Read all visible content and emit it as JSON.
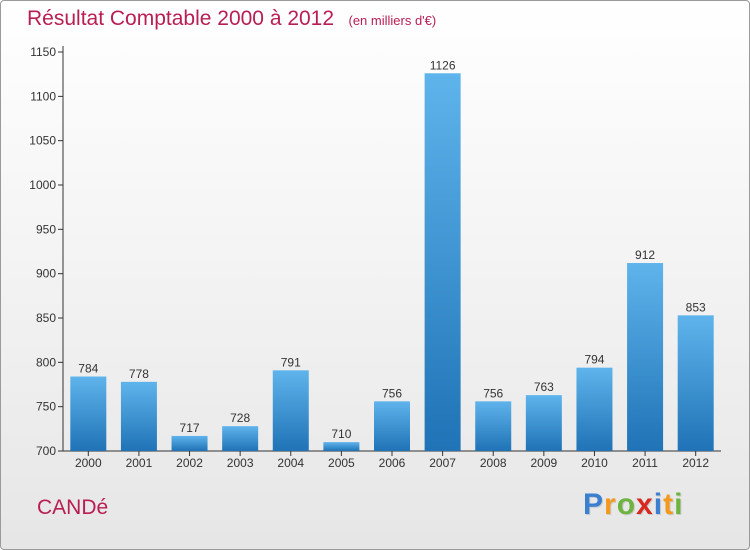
{
  "title": "Résultat Comptable 2000 à 2012",
  "unit": "(en milliers d'€)",
  "city": "CANDé",
  "brand": {
    "letters": [
      "P",
      "r",
      "o",
      "x",
      "i",
      "t",
      "i"
    ],
    "colors": [
      "#3a7fd0",
      "#f39a1e",
      "#6cb33f",
      "#d8281f",
      "#3a7fd0",
      "#f39a1e",
      "#6cb33f"
    ]
  },
  "colors": {
    "title": "#b81e54",
    "bar_light": "#5fb4ec",
    "bar_dark": "#1f73b6",
    "axis": "#333333"
  },
  "chart_data": {
    "type": "bar",
    "title": "Résultat Comptable 2000 à 2012",
    "ylabel": "(en milliers d'€)",
    "xlabel": "",
    "categories": [
      "2000",
      "2001",
      "2002",
      "2003",
      "2004",
      "2005",
      "2006",
      "2007",
      "2008",
      "2009",
      "2010",
      "2011",
      "2012"
    ],
    "values": [
      784,
      778,
      717,
      728,
      791,
      710,
      756,
      1126,
      756,
      763,
      794,
      912,
      853
    ],
    "ylim": [
      700,
      1150
    ],
    "yticks": [
      700,
      750,
      800,
      850,
      900,
      950,
      1000,
      1050,
      1100,
      1150
    ],
    "grid": false
  }
}
